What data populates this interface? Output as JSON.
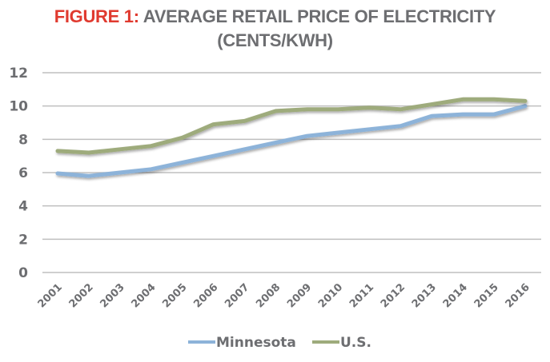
{
  "title": {
    "prefix": "FIGURE 1:",
    "line1": " AVERAGE RETAIL PRICE OF ELECTRICITY",
    "line2": "(CENTS/KWH)",
    "prefix_color": "#e03a2f",
    "text_color": "#6d6e71"
  },
  "chart_data": {
    "type": "line",
    "title": "FIGURE 1: AVERAGE RETAIL PRICE OF ELECTRICITY (CENTS/KWH)",
    "xlabel": "",
    "ylabel": "",
    "x": [
      "2001",
      "2002",
      "2003",
      "2004",
      "2005",
      "2006",
      "2007",
      "2008",
      "2009",
      "2010",
      "2011",
      "2012",
      "2013",
      "2014",
      "2015",
      "2016"
    ],
    "ylim": [
      0,
      12
    ],
    "yticks": [
      0,
      2,
      4,
      6,
      8,
      10,
      12
    ],
    "grid": true,
    "legend_position": "bottom",
    "series": [
      {
        "name": "Minnesota",
        "color": "#8db3d9",
        "values": [
          5.95,
          5.8,
          6.0,
          6.2,
          6.6,
          7.0,
          7.4,
          7.8,
          8.2,
          8.4,
          8.6,
          8.8,
          9.4,
          9.5,
          9.5,
          10.0
        ]
      },
      {
        "name": "U.S.",
        "color": "#9eab7c",
        "values": [
          7.3,
          7.2,
          7.4,
          7.6,
          8.1,
          8.9,
          9.1,
          9.7,
          9.8,
          9.8,
          9.9,
          9.8,
          10.1,
          10.4,
          10.4,
          10.3
        ]
      }
    ]
  }
}
